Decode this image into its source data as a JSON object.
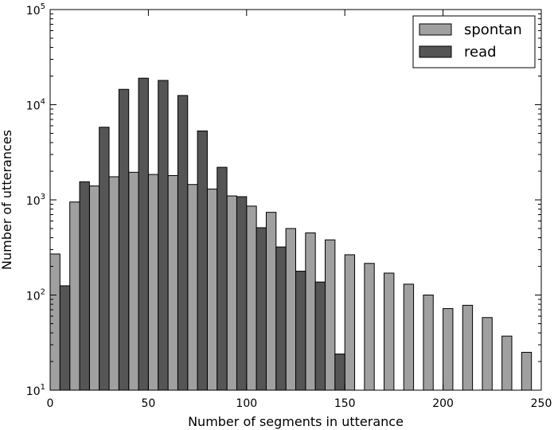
{
  "chart_data": {
    "type": "bar",
    "title": "",
    "xlabel": "Number of segments in utterance",
    "ylabel": "Number of utterances",
    "xlim": [
      0,
      250
    ],
    "ylim": [
      10,
      100000
    ],
    "yscale": "log",
    "grid": false,
    "legend_position": "top-right",
    "bin_width": 10,
    "x_ticks": [
      {
        "value": 0,
        "label": "0"
      },
      {
        "value": 50,
        "label": "50"
      },
      {
        "value": 100,
        "label": "100"
      },
      {
        "value": 150,
        "label": "150"
      },
      {
        "value": 200,
        "label": "200"
      },
      {
        "value": 250,
        "label": "250"
      }
    ],
    "y_ticks": [
      {
        "value": 10,
        "base": "10",
        "exp": "1"
      },
      {
        "value": 100,
        "base": "10",
        "exp": "2"
      },
      {
        "value": 1000,
        "base": "10",
        "exp": "3"
      },
      {
        "value": 10000,
        "base": "10",
        "exp": "4"
      },
      {
        "value": 100000,
        "base": "10",
        "exp": "5"
      }
    ],
    "bins": [
      0,
      10,
      20,
      30,
      40,
      50,
      60,
      70,
      80,
      90,
      100,
      110,
      120,
      130,
      140,
      150,
      160,
      170,
      180,
      190,
      200,
      210,
      220,
      230,
      240
    ],
    "series": [
      {
        "name": "spontan",
        "color": "#a0a0a0",
        "values": [
          270,
          950,
          1400,
          1750,
          1950,
          1850,
          1800,
          1450,
          1300,
          1100,
          860,
          740,
          500,
          450,
          380,
          265,
          215,
          170,
          130,
          100,
          72,
          78,
          58,
          37,
          25
        ]
      },
      {
        "name": "read",
        "color": "#555555",
        "values": [
          125,
          1550,
          5800,
          14500,
          19000,
          18000,
          12500,
          5300,
          2200,
          1080,
          510,
          320,
          178,
          137,
          24,
          0,
          0,
          0,
          0,
          0,
          0,
          0,
          0,
          0,
          0
        ]
      }
    ]
  }
}
